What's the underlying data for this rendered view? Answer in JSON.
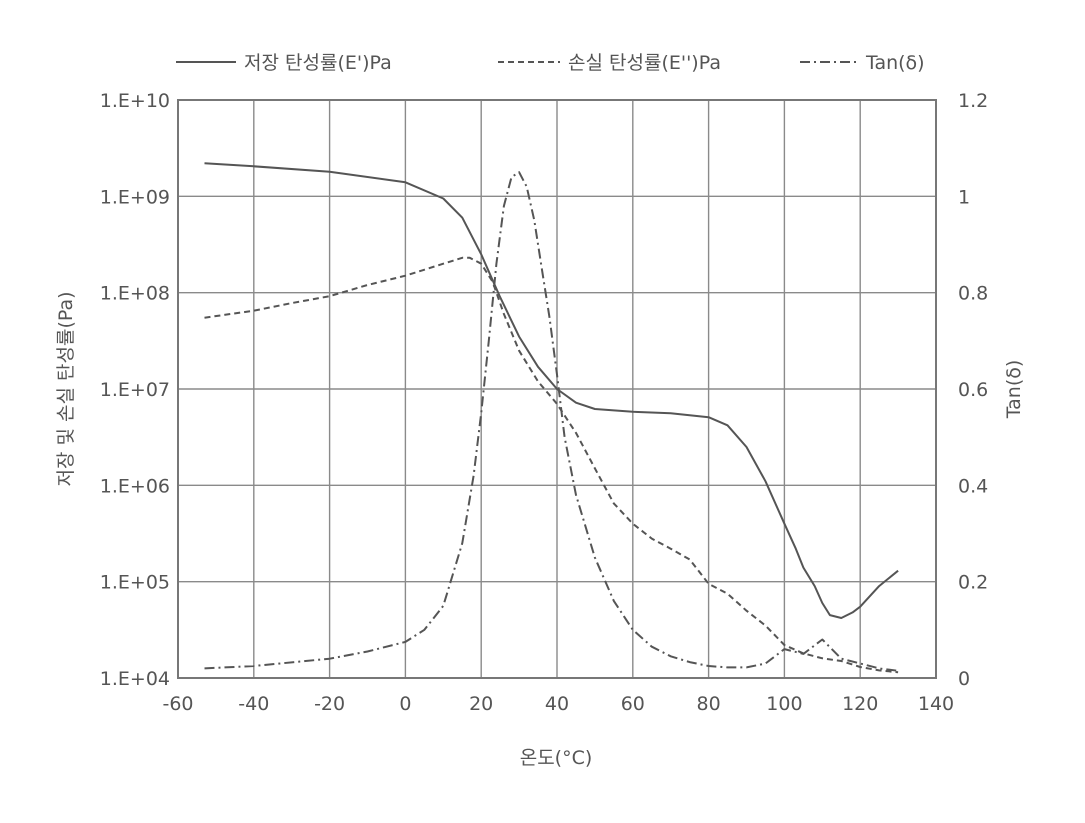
{
  "chart_data": {
    "type": "line",
    "xlabel": "온도(°C)",
    "ylabel": "저장 및 손실 탄성률(Pa)",
    "y2label": "Tan(δ)",
    "xlim": [
      -60,
      140
    ],
    "ylim": [
      10000,
      10000000000
    ],
    "y2lim": [
      0,
      1.2
    ],
    "yscale": "log",
    "grid": true,
    "legend": "top",
    "x_ticks": [
      "-60",
      "-40",
      "-20",
      "0",
      "20",
      "40",
      "60",
      "80",
      "100",
      "120",
      "140"
    ],
    "y_ticks": [
      "1.E+04",
      "1.E+05",
      "1.E+06",
      "1.E+07",
      "1.E+08",
      "1.E+09",
      "1.E+10"
    ],
    "y2_ticks": [
      "0",
      "0.2",
      "0.4",
      "0.6",
      "0.8",
      "1",
      "1.2"
    ],
    "series": [
      {
        "name": "저장 탄성률(E')Pa",
        "axis": "left",
        "style": "solid",
        "x": [
          -53,
          -40,
          -20,
          0,
          10,
          15,
          20,
          25,
          30,
          35,
          40,
          45,
          50,
          60,
          70,
          80,
          85,
          90,
          95,
          100,
          103,
          105,
          108,
          110,
          112,
          115,
          118,
          120,
          125,
          130
        ],
        "y": [
          2200000000,
          2050000000,
          1800000000,
          1400000000,
          950000000,
          600000000,
          250000000,
          90000000,
          35000000,
          17000000,
          10000000,
          7200000,
          6200000,
          5800000,
          5600000,
          5100000,
          4200000,
          2500000,
          1100000,
          400000,
          220000,
          140000,
          90000,
          60000,
          45000,
          42000,
          48000,
          55000,
          90000,
          130000
        ]
      },
      {
        "name": "손실 탄성률(E'')Pa",
        "axis": "left",
        "style": "dashed",
        "x": [
          -53,
          -40,
          -30,
          -20,
          -10,
          0,
          10,
          15,
          17,
          20,
          23,
          26,
          30,
          35,
          40,
          45,
          50,
          55,
          60,
          65,
          70,
          75,
          78,
          80,
          85,
          90,
          95,
          100,
          105,
          110,
          115,
          120,
          125,
          130
        ],
        "y": [
          55000000,
          65000000,
          78000000,
          92000000,
          120000000,
          150000000,
          200000000,
          230000000,
          230000000,
          200000000,
          130000000,
          60000000,
          25000000,
          12000000,
          7000000,
          3500000,
          1500000,
          650000,
          400000,
          280000,
          220000,
          170000,
          120000,
          95000,
          75000,
          50000,
          35000,
          22000,
          18000,
          16000,
          15000,
          13000,
          12000,
          11500
        ]
      },
      {
        "name": "Tan(δ)",
        "axis": "right",
        "style": "dash-dot",
        "x": [
          -53,
          -40,
          -20,
          -10,
          0,
          5,
          10,
          15,
          18,
          20,
          22,
          24,
          26,
          28,
          30,
          32,
          34,
          36,
          38,
          40,
          42,
          45,
          50,
          55,
          60,
          65,
          70,
          75,
          80,
          85,
          90,
          95,
          100,
          105,
          110,
          115,
          120,
          125,
          130
        ],
        "y": [
          0.02,
          0.025,
          0.04,
          0.055,
          0.075,
          0.1,
          0.15,
          0.28,
          0.42,
          0.55,
          0.7,
          0.86,
          0.98,
          1.04,
          1.05,
          1.02,
          0.95,
          0.85,
          0.75,
          0.63,
          0.5,
          0.38,
          0.25,
          0.16,
          0.1,
          0.065,
          0.045,
          0.033,
          0.025,
          0.022,
          0.022,
          0.03,
          0.06,
          0.05,
          0.08,
          0.04,
          0.03,
          0.02,
          0.015
        ]
      }
    ]
  }
}
